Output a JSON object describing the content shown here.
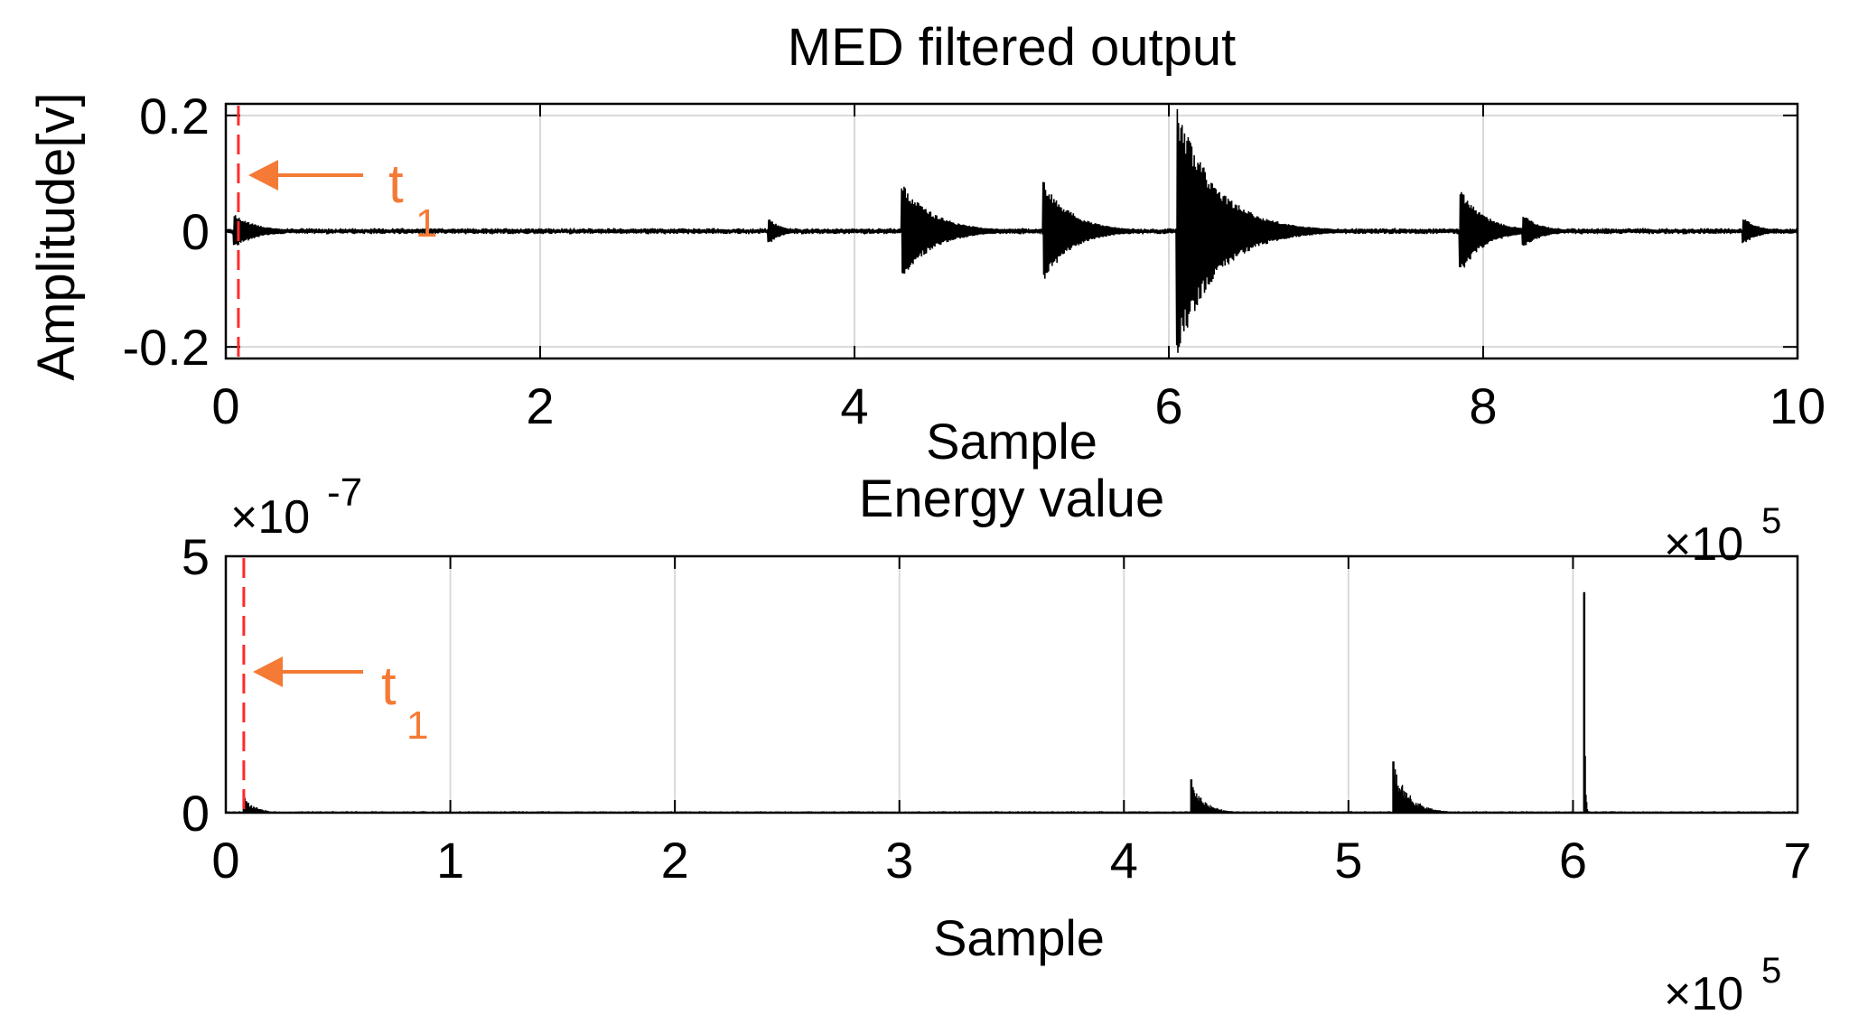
{
  "colors": {
    "signal": "#000000",
    "grid": "#d9d9d9",
    "marker": "#ff2a2a",
    "annotation": "#f47a35"
  },
  "chart_data": [
    {
      "type": "line",
      "title": "MED filtered output",
      "xlabel": "Sample",
      "ylabel": "Amplitude[v]",
      "x_exponent": "×10",
      "x_exponent_power": "5",
      "xlim": [
        0,
        10
      ],
      "ylim": [
        -0.22,
        0.22
      ],
      "xticks": [
        0,
        2,
        4,
        6,
        8,
        10
      ],
      "xtick_labels": [
        "0",
        "2",
        "4",
        "6",
        "8",
        "10"
      ],
      "yticks": [
        0.2,
        0,
        -0.2
      ],
      "ytick_labels": [
        "0.2",
        "0",
        "-0.2"
      ],
      "grid": true,
      "noise_amplitude": 0.004,
      "marker": {
        "x": 0.08,
        "label": "t",
        "label_subscript": "1"
      },
      "bursts": [
        {
          "x": 0.05,
          "peak": 0.03,
          "length": 0.45,
          "decay": 0.15
        },
        {
          "x": 3.45,
          "peak": 0.025,
          "length": 0.25,
          "decay": 0.08
        },
        {
          "x": 4.3,
          "peak": 0.085,
          "length": 0.75,
          "decay": 0.2
        },
        {
          "x": 5.2,
          "peak": 0.09,
          "length": 0.6,
          "decay": 0.18
        },
        {
          "x": 6.05,
          "peak": 0.22,
          "length": 1.3,
          "decay": 0.25
        },
        {
          "x": 7.85,
          "peak": 0.08,
          "length": 0.5,
          "decay": 0.15
        },
        {
          "x": 8.25,
          "peak": 0.03,
          "length": 0.5,
          "decay": 0.12
        },
        {
          "x": 9.65,
          "peak": 0.025,
          "length": 0.35,
          "decay": 0.1
        }
      ]
    },
    {
      "type": "line",
      "title": "Energy value",
      "xlabel": "Sample",
      "ylabel": "",
      "y_exponent": "×10",
      "y_exponent_power": "-7",
      "x_exponent": "×10",
      "x_exponent_power": "5",
      "xlim": [
        0,
        7
      ],
      "ylim": [
        0,
        5
      ],
      "xticks": [
        0,
        1,
        2,
        3,
        4,
        5,
        6,
        7
      ],
      "xtick_labels": [
        "0",
        "1",
        "2",
        "3",
        "4",
        "5",
        "6",
        "7"
      ],
      "yticks": [
        5,
        0
      ],
      "ytick_labels": [
        "5",
        "0"
      ],
      "grid": true,
      "noise_amplitude": 0.03,
      "marker": {
        "x": 0.08,
        "label": "t",
        "label_subscript": "1"
      },
      "spikes": [
        {
          "x": 0.08,
          "peak": 0.35,
          "decay": 0.05
        },
        {
          "x": 4.3,
          "peak": 0.65,
          "decay": 0.06
        },
        {
          "x": 5.2,
          "peak": 1.0,
          "decay": 0.07
        },
        {
          "x": 6.05,
          "peak": 4.3,
          "decay": 0.004
        }
      ]
    }
  ]
}
